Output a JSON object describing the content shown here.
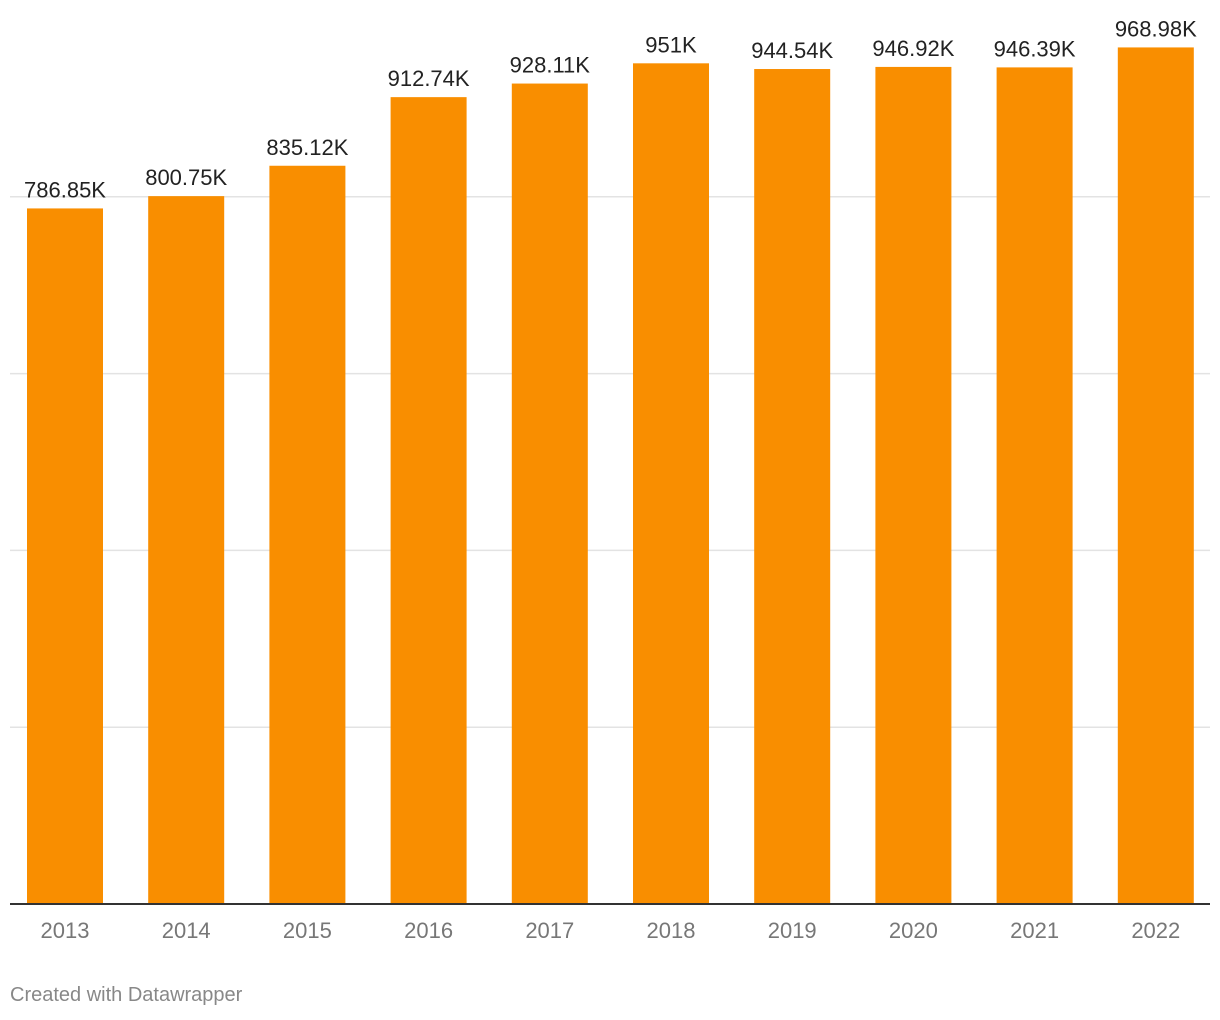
{
  "chart_data": {
    "type": "bar",
    "categories": [
      "2013",
      "2014",
      "2015",
      "2016",
      "2017",
      "2018",
      "2019",
      "2020",
      "2021",
      "2022"
    ],
    "values": [
      786850,
      800750,
      835120,
      912740,
      928110,
      951000,
      944540,
      946920,
      946390,
      968980
    ],
    "data_labels": [
      "786.85K",
      "800.75K",
      "835.12K",
      "912.74K",
      "928.11K",
      "951K",
      "944.54K",
      "946.92K",
      "946.39K",
      "968.98K"
    ],
    "ylim": [
      0,
      1000000
    ],
    "y_gridlines": [
      200000,
      400000,
      600000,
      800000
    ],
    "grid": true,
    "bar_color": "#f98e00",
    "title": "",
    "xlabel": "",
    "ylabel": ""
  },
  "credit": "Created with Datawrapper"
}
